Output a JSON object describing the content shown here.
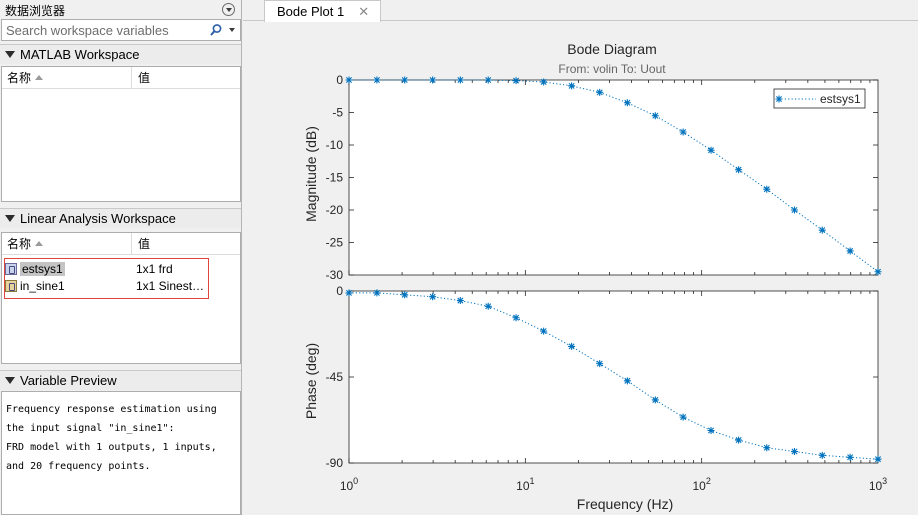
{
  "browser": {
    "title": "数据浏览器",
    "search_placeholder": "Search workspace variables",
    "matlab_section": "MATLAB Workspace",
    "linear_section": "Linear Analysis Workspace",
    "preview_section": "Variable Preview",
    "col_name": "名称",
    "col_value": "值",
    "matlab_vars": [],
    "linear_vars": [
      {
        "name": "estsys1",
        "value": "1x1 frd"
      },
      {
        "name": "in_sine1",
        "value": "1x1 Sinest…"
      }
    ],
    "preview_lines": [
      "Frequency response estimation using",
      "the input signal \"in_sine1\":",
      "FRD model with 1 outputs, 1 inputs,",
      "and 20 frequency points."
    ]
  },
  "tab": {
    "label": "Bode Plot 1",
    "close": "✕"
  },
  "chart_data": {
    "type": "line",
    "title": "Bode Diagram",
    "subtitle": "From: volin  To: Uout",
    "xlabel": "Frequency  (Hz)",
    "xscale": "log",
    "xlim": [
      1,
      1000
    ],
    "x_ticks": [
      {
        "base": "10",
        "exp": "0"
      },
      {
        "base": "10",
        "exp": "1"
      },
      {
        "base": "10",
        "exp": "2"
      },
      {
        "base": "10",
        "exp": "3"
      }
    ],
    "legend": "estsys1",
    "legend_position": "top-right",
    "series_color": "#0072bd",
    "marker": "*",
    "x": [
      1,
      1.44,
      2.07,
      2.98,
      4.28,
      6.16,
      8.86,
      12.7,
      18.3,
      26.4,
      37.9,
      54.6,
      78.5,
      113,
      162,
      234,
      336,
      483,
      695,
      1000
    ],
    "magnitude": {
      "ylabel": "Magnitude (dB)",
      "ylim": [
        -30,
        0
      ],
      "yticks": [
        "0",
        "-5",
        "-10",
        "-15",
        "-20",
        "-25",
        "-30"
      ],
      "values": [
        0,
        0,
        0,
        0,
        0,
        0,
        -0.1,
        -0.3,
        -0.9,
        -1.9,
        -3.5,
        -5.5,
        -8.0,
        -10.8,
        -13.8,
        -16.8,
        -20.0,
        -23.1,
        -26.3,
        -29.5
      ]
    },
    "phase": {
      "ylabel": "Phase (deg)",
      "ylim": [
        -90,
        0
      ],
      "yticks": [
        "0",
        "-45",
        "-90"
      ],
      "values": [
        -1,
        -1,
        -2,
        -3,
        -5,
        -8,
        -14,
        -21,
        -29,
        -38,
        -47,
        -57,
        -66,
        -73,
        -78,
        -82,
        -84,
        -86,
        -87,
        -88
      ]
    }
  }
}
